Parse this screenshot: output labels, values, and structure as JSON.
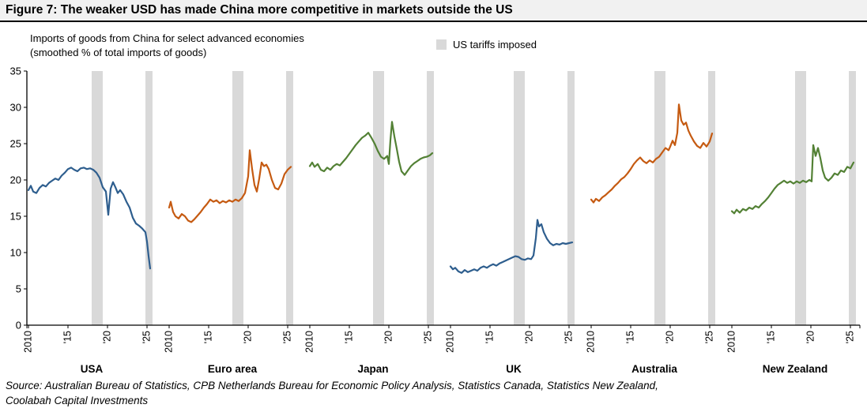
{
  "title": "Figure 7: The weaker USD has made China more competitive in markets outside the US",
  "subtitle_line1": "Imports of goods from China for select advanced economies",
  "subtitle_line2": "(smoothed % of total imports of goods)",
  "legend": {
    "tariff_label": "US tariffs imposed",
    "tariff_color": "#D9D9D9"
  },
  "source_line1": "Source: Australian Bureau of Statistics, CPB Netherlands Bureau for Economic Policy Analysis, Statistics Canada, Statistics New Zealand,",
  "source_line2": "Coolabah Capital Investments",
  "chart_data": {
    "type": "line",
    "title": "Figure 7: The weaker USD has made China more competitive in markets outside the US",
    "subtitle": "Imports of goods from China for select advanced economies (smoothed % of total imports of goods)",
    "ylabel": "smoothed % of total imports of goods",
    "ylim": [
      0,
      35
    ],
    "yticks": [
      0,
      5,
      10,
      15,
      20,
      25,
      30,
      35
    ],
    "xlim": [
      2009.8,
      2026.2
    ],
    "xticks": [
      {
        "v": 2010,
        "label": "2010"
      },
      {
        "v": 2015,
        "label": "'15"
      },
      {
        "v": 2020,
        "label": "'20"
      },
      {
        "v": 2025,
        "label": "'25"
      }
    ],
    "grid": false,
    "legend_position": "top-center",
    "tariff_bands": [
      [
        2018.0,
        2019.4
      ],
      [
        2024.8,
        2025.7
      ]
    ],
    "panels": [
      {
        "name": "USA",
        "color": "#2E5E8E",
        "points": [
          [
            2010.0,
            18.6
          ],
          [
            2010.3,
            19.2
          ],
          [
            2010.6,
            18.4
          ],
          [
            2011.0,
            18.2
          ],
          [
            2011.4,
            18.9
          ],
          [
            2011.8,
            19.3
          ],
          [
            2012.2,
            19.1
          ],
          [
            2012.6,
            19.6
          ],
          [
            2013.0,
            19.9
          ],
          [
            2013.4,
            20.2
          ],
          [
            2013.8,
            20.0
          ],
          [
            2014.2,
            20.6
          ],
          [
            2014.6,
            21.0
          ],
          [
            2015.0,
            21.5
          ],
          [
            2015.4,
            21.7
          ],
          [
            2015.8,
            21.4
          ],
          [
            2016.2,
            21.2
          ],
          [
            2016.6,
            21.6
          ],
          [
            2017.0,
            21.7
          ],
          [
            2017.4,
            21.5
          ],
          [
            2017.8,
            21.6
          ],
          [
            2018.2,
            21.4
          ],
          [
            2018.6,
            21.0
          ],
          [
            2019.0,
            20.3
          ],
          [
            2019.4,
            19.0
          ],
          [
            2019.8,
            18.4
          ],
          [
            2020.1,
            15.2
          ],
          [
            2020.4,
            18.8
          ],
          [
            2020.7,
            19.7
          ],
          [
            2021.0,
            19.0
          ],
          [
            2021.3,
            18.2
          ],
          [
            2021.6,
            18.6
          ],
          [
            2022.0,
            18.0
          ],
          [
            2022.4,
            17.0
          ],
          [
            2022.8,
            16.2
          ],
          [
            2023.2,
            14.8
          ],
          [
            2023.6,
            14.0
          ],
          [
            2024.0,
            13.7
          ],
          [
            2024.4,
            13.3
          ],
          [
            2024.8,
            12.8
          ],
          [
            2025.0,
            11.5
          ],
          [
            2025.2,
            9.5
          ],
          [
            2025.4,
            7.8
          ]
        ]
      },
      {
        "name": "Euro area",
        "color": "#C55A11",
        "points": [
          [
            2010.0,
            16.2
          ],
          [
            2010.2,
            17.0
          ],
          [
            2010.5,
            15.6
          ],
          [
            2010.8,
            15.0
          ],
          [
            2011.2,
            14.7
          ],
          [
            2011.6,
            15.3
          ],
          [
            2012.0,
            15.0
          ],
          [
            2012.4,
            14.4
          ],
          [
            2012.8,
            14.2
          ],
          [
            2013.2,
            14.6
          ],
          [
            2013.6,
            15.1
          ],
          [
            2014.0,
            15.6
          ],
          [
            2014.4,
            16.2
          ],
          [
            2014.8,
            16.7
          ],
          [
            2015.2,
            17.3
          ],
          [
            2015.6,
            17.0
          ],
          [
            2016.0,
            17.2
          ],
          [
            2016.4,
            16.8
          ],
          [
            2016.8,
            17.1
          ],
          [
            2017.2,
            16.9
          ],
          [
            2017.6,
            17.2
          ],
          [
            2018.0,
            17.0
          ],
          [
            2018.4,
            17.3
          ],
          [
            2018.8,
            17.1
          ],
          [
            2019.2,
            17.5
          ],
          [
            2019.6,
            18.2
          ],
          [
            2020.0,
            20.5
          ],
          [
            2020.2,
            24.1
          ],
          [
            2020.5,
            21.5
          ],
          [
            2020.8,
            19.3
          ],
          [
            2021.1,
            18.4
          ],
          [
            2021.4,
            20.2
          ],
          [
            2021.7,
            22.4
          ],
          [
            2022.0,
            21.9
          ],
          [
            2022.3,
            22.1
          ],
          [
            2022.6,
            21.5
          ],
          [
            2023.0,
            20.0
          ],
          [
            2023.4,
            18.9
          ],
          [
            2023.8,
            18.7
          ],
          [
            2024.2,
            19.5
          ],
          [
            2024.6,
            20.8
          ],
          [
            2025.0,
            21.4
          ],
          [
            2025.4,
            21.8
          ]
        ]
      },
      {
        "name": "Japan",
        "color": "#538135",
        "points": [
          [
            2010.0,
            21.9
          ],
          [
            2010.3,
            22.4
          ],
          [
            2010.6,
            21.8
          ],
          [
            2011.0,
            22.2
          ],
          [
            2011.4,
            21.4
          ],
          [
            2011.8,
            21.2
          ],
          [
            2012.2,
            21.7
          ],
          [
            2012.6,
            21.4
          ],
          [
            2013.0,
            21.9
          ],
          [
            2013.4,
            22.2
          ],
          [
            2013.8,
            22.0
          ],
          [
            2014.2,
            22.5
          ],
          [
            2014.6,
            23.0
          ],
          [
            2015.0,
            23.6
          ],
          [
            2015.4,
            24.2
          ],
          [
            2015.8,
            24.8
          ],
          [
            2016.2,
            25.3
          ],
          [
            2016.6,
            25.8
          ],
          [
            2017.0,
            26.1
          ],
          [
            2017.4,
            26.5
          ],
          [
            2017.8,
            25.8
          ],
          [
            2018.2,
            25.0
          ],
          [
            2018.6,
            24.0
          ],
          [
            2019.0,
            23.2
          ],
          [
            2019.4,
            22.9
          ],
          [
            2019.8,
            23.3
          ],
          [
            2020.0,
            22.2
          ],
          [
            2020.2,
            25.5
          ],
          [
            2020.4,
            28.0
          ],
          [
            2020.7,
            26.0
          ],
          [
            2021.0,
            24.3
          ],
          [
            2021.3,
            22.5
          ],
          [
            2021.6,
            21.2
          ],
          [
            2022.0,
            20.7
          ],
          [
            2022.4,
            21.3
          ],
          [
            2022.8,
            21.9
          ],
          [
            2023.2,
            22.3
          ],
          [
            2023.6,
            22.6
          ],
          [
            2024.0,
            22.9
          ],
          [
            2024.4,
            23.1
          ],
          [
            2024.8,
            23.2
          ],
          [
            2025.2,
            23.4
          ],
          [
            2025.5,
            23.7
          ]
        ]
      },
      {
        "name": "UK",
        "color": "#2E5E8E",
        "points": [
          [
            2010.0,
            8.1
          ],
          [
            2010.3,
            7.7
          ],
          [
            2010.6,
            7.9
          ],
          [
            2011.0,
            7.4
          ],
          [
            2011.4,
            7.2
          ],
          [
            2011.8,
            7.6
          ],
          [
            2012.2,
            7.3
          ],
          [
            2012.6,
            7.5
          ],
          [
            2013.0,
            7.7
          ],
          [
            2013.4,
            7.5
          ],
          [
            2013.8,
            7.9
          ],
          [
            2014.2,
            8.1
          ],
          [
            2014.6,
            7.9
          ],
          [
            2015.0,
            8.2
          ],
          [
            2015.4,
            8.4
          ],
          [
            2015.8,
            8.2
          ],
          [
            2016.2,
            8.5
          ],
          [
            2016.6,
            8.7
          ],
          [
            2017.0,
            8.9
          ],
          [
            2017.4,
            9.1
          ],
          [
            2017.8,
            9.3
          ],
          [
            2018.2,
            9.5
          ],
          [
            2018.6,
            9.4
          ],
          [
            2019.0,
            9.1
          ],
          [
            2019.4,
            9.0
          ],
          [
            2019.8,
            9.2
          ],
          [
            2020.2,
            9.1
          ],
          [
            2020.5,
            9.6
          ],
          [
            2020.8,
            12.0
          ],
          [
            2021.0,
            14.5
          ],
          [
            2021.2,
            13.6
          ],
          [
            2021.5,
            13.9
          ],
          [
            2021.8,
            12.8
          ],
          [
            2022.2,
            11.9
          ],
          [
            2022.6,
            11.3
          ],
          [
            2023.0,
            11.0
          ],
          [
            2023.4,
            11.2
          ],
          [
            2023.8,
            11.1
          ],
          [
            2024.2,
            11.3
          ],
          [
            2024.6,
            11.2
          ],
          [
            2025.0,
            11.3
          ],
          [
            2025.4,
            11.4
          ]
        ]
      },
      {
        "name": "Australia",
        "color": "#C55A11",
        "points": [
          [
            2010.0,
            17.3
          ],
          [
            2010.3,
            16.9
          ],
          [
            2010.6,
            17.4
          ],
          [
            2011.0,
            17.1
          ],
          [
            2011.4,
            17.6
          ],
          [
            2011.8,
            17.9
          ],
          [
            2012.2,
            18.3
          ],
          [
            2012.6,
            18.7
          ],
          [
            2013.0,
            19.2
          ],
          [
            2013.4,
            19.6
          ],
          [
            2013.8,
            20.1
          ],
          [
            2014.2,
            20.4
          ],
          [
            2014.6,
            20.9
          ],
          [
            2015.0,
            21.5
          ],
          [
            2015.4,
            22.2
          ],
          [
            2015.8,
            22.7
          ],
          [
            2016.2,
            23.1
          ],
          [
            2016.6,
            22.6
          ],
          [
            2017.0,
            22.3
          ],
          [
            2017.4,
            22.7
          ],
          [
            2017.8,
            22.4
          ],
          [
            2018.2,
            22.9
          ],
          [
            2018.6,
            23.2
          ],
          [
            2019.0,
            23.8
          ],
          [
            2019.4,
            24.4
          ],
          [
            2019.8,
            24.1
          ],
          [
            2020.0,
            24.6
          ],
          [
            2020.3,
            25.4
          ],
          [
            2020.6,
            24.8
          ],
          [
            2020.9,
            26.5
          ],
          [
            2021.1,
            30.4
          ],
          [
            2021.4,
            28.2
          ],
          [
            2021.7,
            27.6
          ],
          [
            2022.0,
            27.9
          ],
          [
            2022.3,
            26.8
          ],
          [
            2022.6,
            26.1
          ],
          [
            2023.0,
            25.3
          ],
          [
            2023.4,
            24.7
          ],
          [
            2023.8,
            24.4
          ],
          [
            2024.2,
            25.1
          ],
          [
            2024.6,
            24.6
          ],
          [
            2025.0,
            25.3
          ],
          [
            2025.3,
            26.4
          ]
        ]
      },
      {
        "name": "New Zealand",
        "color": "#538135",
        "points": [
          [
            2010.0,
            15.7
          ],
          [
            2010.3,
            15.4
          ],
          [
            2010.6,
            15.9
          ],
          [
            2011.0,
            15.5
          ],
          [
            2011.4,
            16.0
          ],
          [
            2011.8,
            15.8
          ],
          [
            2012.2,
            16.2
          ],
          [
            2012.6,
            16.0
          ],
          [
            2013.0,
            16.4
          ],
          [
            2013.4,
            16.2
          ],
          [
            2013.8,
            16.7
          ],
          [
            2014.2,
            17.1
          ],
          [
            2014.6,
            17.6
          ],
          [
            2015.0,
            18.2
          ],
          [
            2015.4,
            18.8
          ],
          [
            2015.8,
            19.3
          ],
          [
            2016.2,
            19.6
          ],
          [
            2016.6,
            19.9
          ],
          [
            2017.0,
            19.6
          ],
          [
            2017.4,
            19.8
          ],
          [
            2017.8,
            19.5
          ],
          [
            2018.2,
            19.8
          ],
          [
            2018.6,
            19.6
          ],
          [
            2019.0,
            19.9
          ],
          [
            2019.4,
            19.7
          ],
          [
            2019.8,
            20.0
          ],
          [
            2020.1,
            19.8
          ],
          [
            2020.3,
            24.8
          ],
          [
            2020.6,
            23.3
          ],
          [
            2020.9,
            24.4
          ],
          [
            2021.2,
            23.0
          ],
          [
            2021.5,
            21.3
          ],
          [
            2021.8,
            20.3
          ],
          [
            2022.2,
            19.9
          ],
          [
            2022.6,
            20.3
          ],
          [
            2023.0,
            20.9
          ],
          [
            2023.4,
            20.7
          ],
          [
            2023.8,
            21.3
          ],
          [
            2024.2,
            21.1
          ],
          [
            2024.6,
            21.8
          ],
          [
            2025.0,
            21.6
          ],
          [
            2025.4,
            22.4
          ]
        ]
      }
    ]
  }
}
